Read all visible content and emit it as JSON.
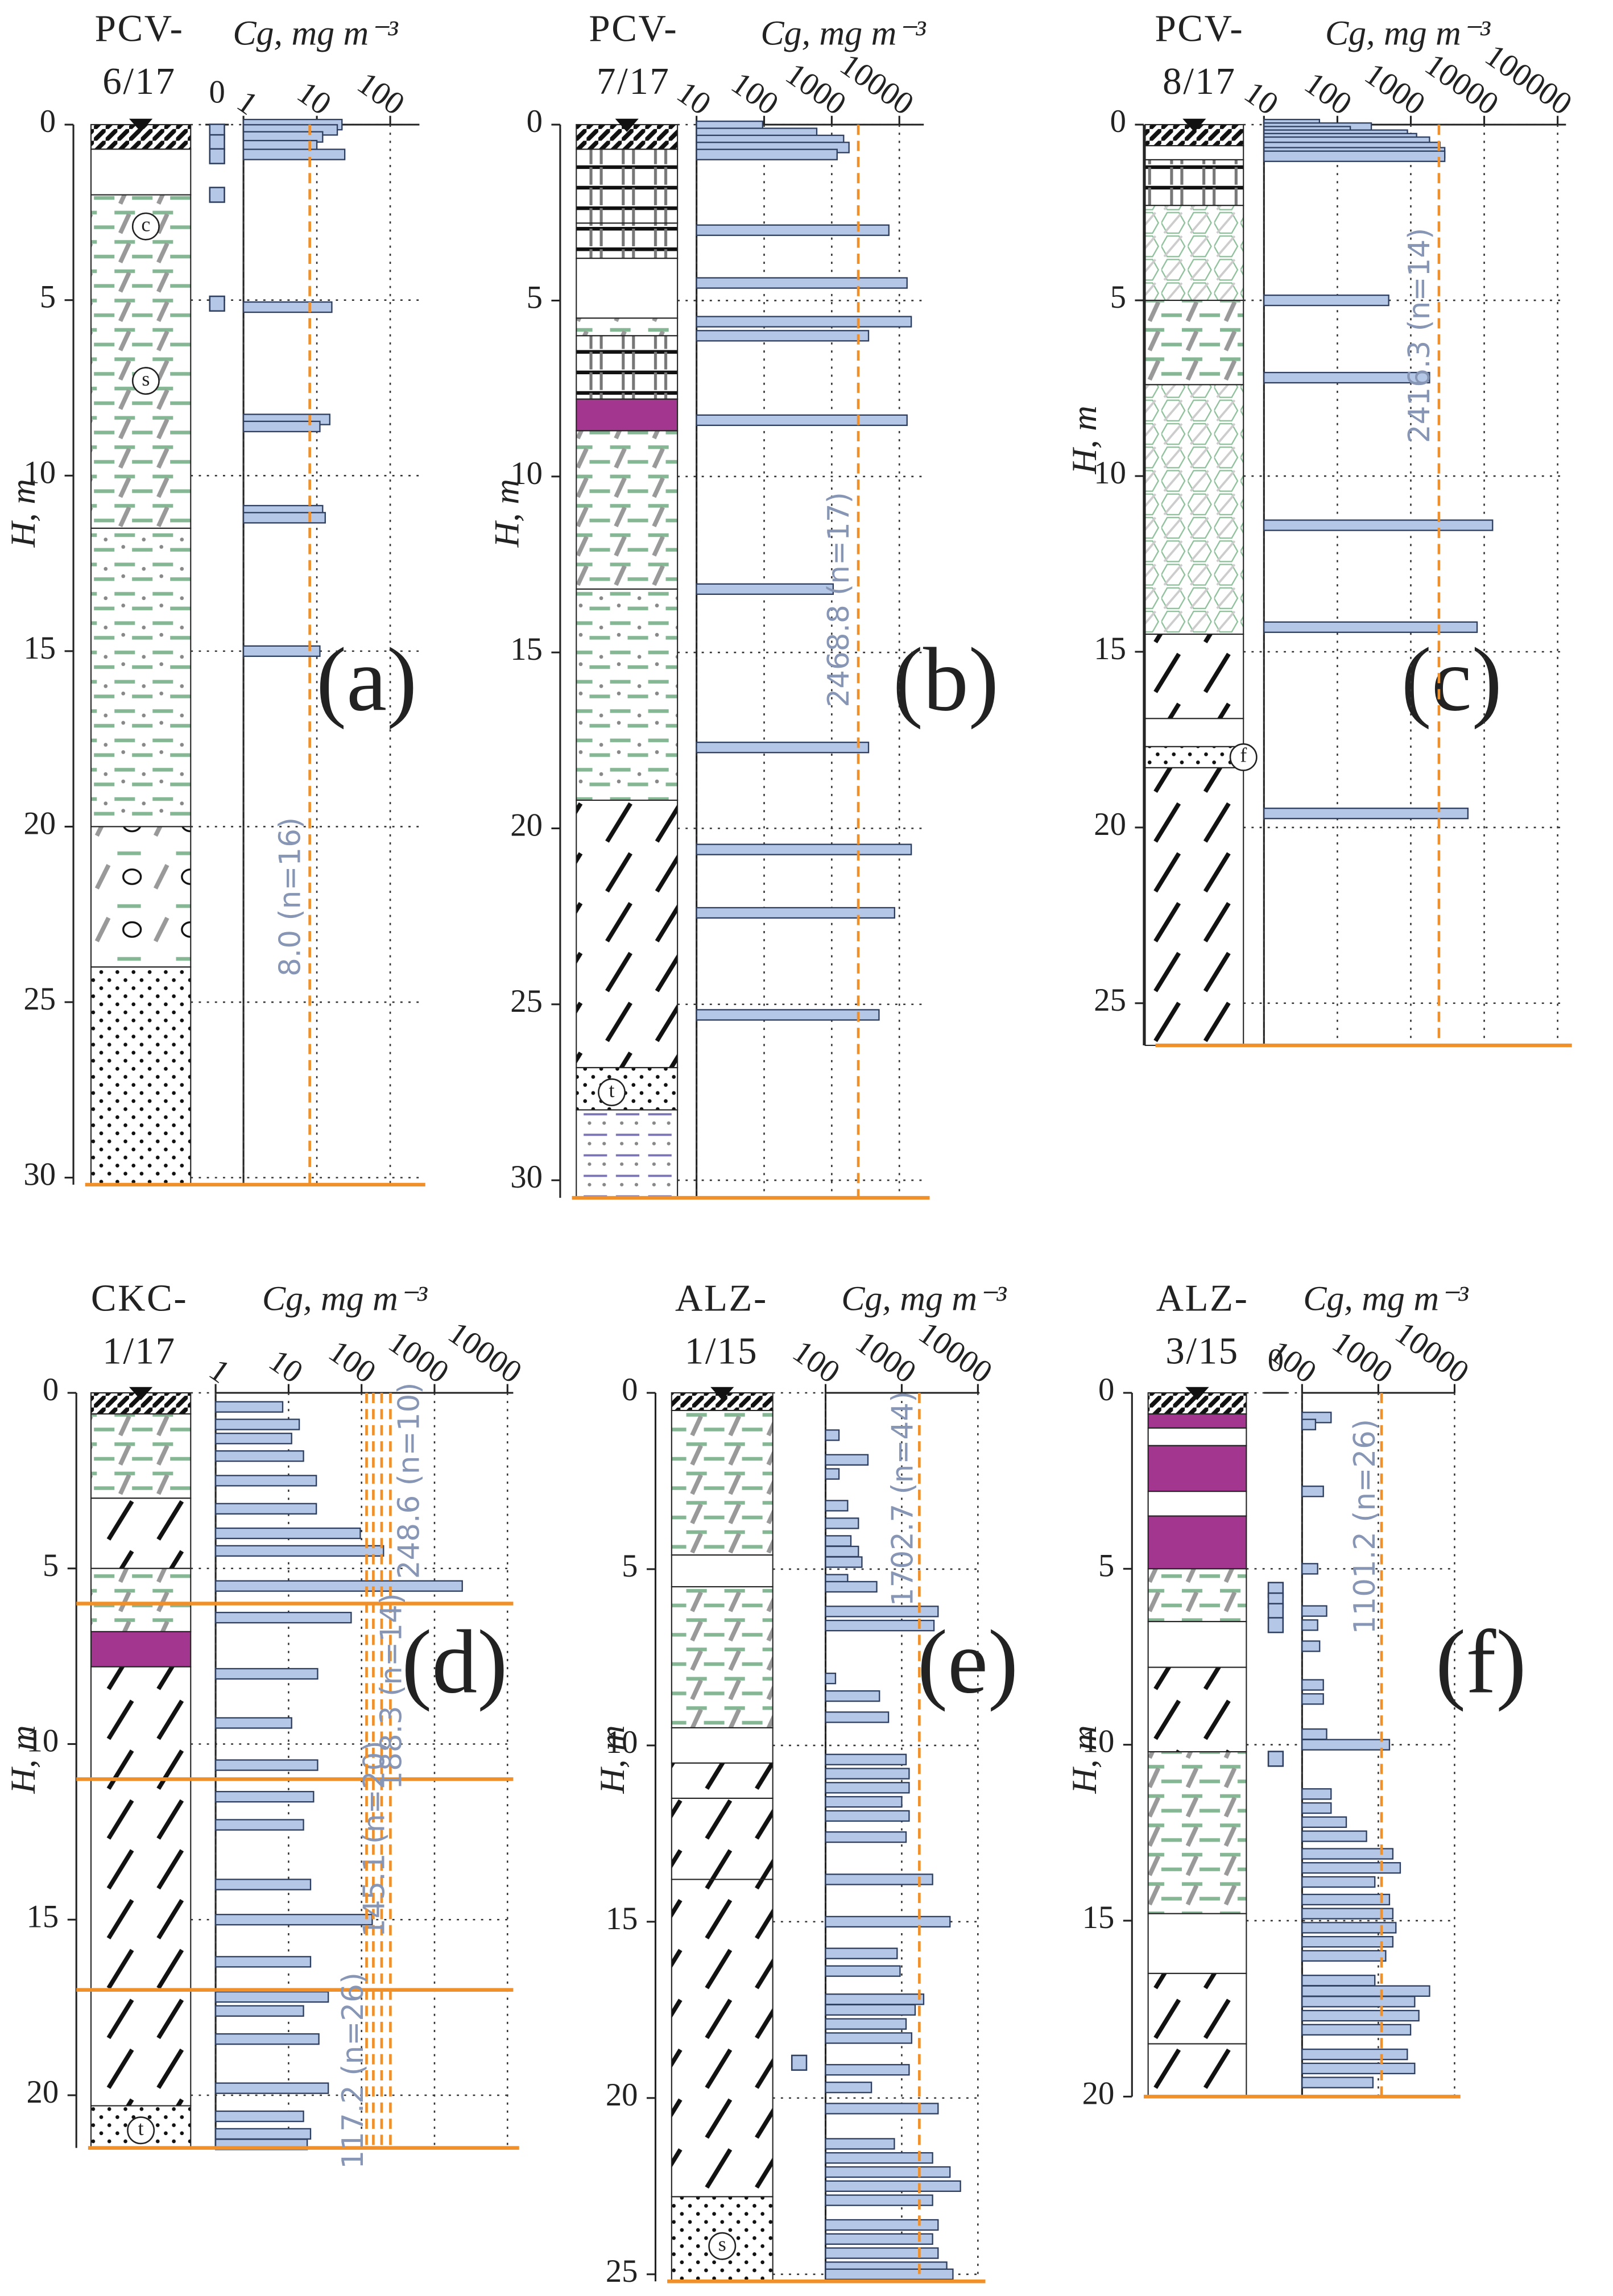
{
  "chart_data": [
    {
      "type": "bar",
      "orientation": "horizontal",
      "log_x": true,
      "title": [
        "PCV-",
        "6/17"
      ],
      "x_label": "Cg, mg m⁻³",
      "y_label": "H, m",
      "panel": "(a)",
      "xlim": [
        1,
        250
      ],
      "xticks": [
        1,
        10,
        100
      ],
      "ylim": [
        0,
        30.2
      ],
      "yticks": [
        0,
        5,
        10,
        15,
        20,
        25,
        30
      ],
      "grid": true,
      "color": "#b4c7e7",
      "depths": [
        0.0,
        0.15,
        0.35,
        0.6,
        0.85,
        5.2,
        8.4,
        8.6,
        11.0,
        11.2,
        15.0
      ],
      "values": [
        22,
        19,
        12,
        10,
        24,
        16,
        15,
        11,
        12,
        13,
        11
      ],
      "zero_tick": 0,
      "zeros": [
        0.2,
        0.5,
        0.9,
        2.0,
        5.1
      ],
      "means": [
        {
          "value": 8.0,
          "label": "8.0 (n=16)"
        }
      ],
      "mean_color": "#f0902a",
      "litho_labels": [
        "c",
        "s"
      ]
    },
    {
      "type": "bar",
      "orientation": "horizontal",
      "log_x": true,
      "title": [
        "PCV-",
        "7/17"
      ],
      "x_label": "Cg, mg m⁻³",
      "y_label": "H, m",
      "panel": "(b)",
      "xlim": [
        10,
        23000
      ],
      "xticks": [
        10,
        100,
        1000,
        10000
      ],
      "ylim": [
        0,
        30.5
      ],
      "yticks": [
        0,
        5,
        10,
        15,
        20,
        25,
        30
      ],
      "grid": true,
      "color": "#b4c7e7",
      "depths": [
        0.05,
        0.25,
        0.45,
        0.65,
        0.85,
        3.0,
        4.5,
        5.6,
        6.0,
        8.4,
        13.2,
        17.7,
        20.6,
        22.4,
        25.3
      ],
      "values": [
        95,
        600,
        1500,
        1800,
        1200,
        7000,
        13000,
        15000,
        3500,
        13000,
        1050,
        3500,
        15000,
        8500,
        5000
      ],
      "means": [
        {
          "value": 2468.8,
          "label": "2468.8 (n=17)"
        }
      ],
      "mean_color": "#f0902a",
      "litho_labels": [
        "t"
      ]
    },
    {
      "type": "bar",
      "orientation": "horizontal",
      "log_x": true,
      "title": [
        "PCV-",
        "8/17"
      ],
      "x_label": "Cg, mg m⁻³",
      "y_label": "H, m",
      "panel": "(c)",
      "xlim": [
        10,
        130000
      ],
      "xticks": [
        10,
        100,
        1000,
        10000,
        100000
      ],
      "ylim": [
        0,
        26.2
      ],
      "yticks": [
        0,
        5,
        10,
        15,
        20,
        25
      ],
      "grid": true,
      "color": "#b4c7e7",
      "depths": [
        0.0,
        0.1,
        0.2,
        0.3,
        0.4,
        0.5,
        0.65,
        0.8,
        0.9,
        5.0,
        7.2,
        11.4,
        14.3,
        19.6
      ],
      "values": [
        57,
        290,
        150,
        900,
        1200,
        1800,
        2500,
        2900,
        2900,
        500,
        1800,
        13000,
        8000,
        6000
      ],
      "means": [
        {
          "value": 2416.3,
          "label": "2416.3 (n=14)"
        }
      ],
      "mean_color": "#f0902a",
      "litho_labels": [
        "f"
      ]
    },
    {
      "type": "bar",
      "orientation": "horizontal",
      "log_x": true,
      "title": [
        "CKC-",
        "1/17"
      ],
      "x_label": "Cg, mg m⁻³",
      "y_label": "H, m",
      "panel": "(d)",
      "xlim": [
        1,
        12000
      ],
      "xticks": [
        1,
        10,
        100,
        1000,
        10000
      ],
      "ylim": [
        0,
        21.5
      ],
      "yticks": [
        0,
        5,
        10,
        15,
        20
      ],
      "grid": true,
      "color": "#b4c7e7",
      "depths": [
        0.4,
        0.9,
        1.3,
        1.8,
        2.5,
        3.3,
        4.0,
        4.5,
        5.5,
        6.4,
        8.0,
        9.4,
        10.6,
        11.5,
        12.3,
        14.0,
        15.0,
        16.2,
        17.2,
        17.6,
        18.4,
        19.8,
        20.6,
        21.1,
        21.4
      ],
      "values": [
        8.3,
        14,
        11,
        16,
        24,
        24,
        96,
        200,
        2400,
        72,
        25,
        11,
        25,
        22,
        16,
        20,
        140,
        20,
        35,
        16,
        26,
        35,
        16,
        20,
        18
      ],
      "boundaries": [
        6,
        11,
        17
      ],
      "means": [
        {
          "value": 248.6,
          "label": "248.6 (n=10)"
        },
        {
          "value": 188.3,
          "label": "188.3 (n=14)"
        },
        {
          "value": 145.1,
          "label": "145.1 (n=20)"
        },
        {
          "value": 117.2,
          "label": "117.2 (n=26)"
        }
      ],
      "mean_color": "#f0902a",
      "litho_labels": [
        "t"
      ]
    },
    {
      "type": "bar",
      "orientation": "horizontal",
      "log_x": true,
      "title": [
        "ALZ-",
        "1/15"
      ],
      "x_label": "Cg, mg m⁻³",
      "y_label": "H, m",
      "panel": "(e)",
      "xlim": [
        100,
        10500
      ],
      "xticks": [
        100,
        1000,
        10000
      ],
      "ylim": [
        0,
        25.2
      ],
      "yticks": [
        0,
        5,
        10,
        15,
        20,
        25
      ],
      "grid": true,
      "color": "#b4c7e7",
      "depths": [
        1.2,
        1.9,
        2.3,
        3.2,
        3.7,
        4.2,
        4.5,
        4.8,
        5.3,
        5.5,
        6.2,
        6.6,
        8.1,
        8.6,
        9.2,
        10.4,
        10.8,
        11.2,
        11.6,
        12.0,
        12.6,
        13.8,
        15.0,
        15.9,
        16.4,
        17.2,
        17.5,
        17.9,
        18.3,
        19.2,
        19.7,
        20.3,
        21.3,
        21.7,
        22.1,
        22.5,
        22.9,
        23.6,
        24.0,
        24.4,
        24.8,
        25.0
      ],
      "values": [
        150,
        360,
        150,
        195,
        270,
        215,
        270,
        300,
        195,
        470,
        3000,
        2650,
        135,
        510,
        670,
        1140,
        1250,
        1250,
        1000,
        1250,
        1140,
        2540,
        4300,
        870,
        950,
        1940,
        1500,
        1140,
        1350,
        1250,
        400,
        3000,
        800,
        2540,
        4300,
        5900,
        2540,
        3000,
        2540,
        3000,
        3900,
        4700
      ],
      "zeros": [
        19.0
      ],
      "means": [
        {
          "value": 1702.7,
          "label": "1702.7 (n=44)"
        }
      ],
      "mean_color": "#f0902a",
      "litho_labels": [
        "s"
      ]
    },
    {
      "type": "bar",
      "orientation": "horizontal",
      "log_x": true,
      "title": [
        "ALZ-",
        "3/15"
      ],
      "x_label": "Cg, mg m⁻³",
      "y_label": "H, m",
      "panel": "(f)",
      "xlim": [
        100,
        10000
      ],
      "xticks": [
        100,
        1000,
        10000
      ],
      "ylim": [
        0,
        20
      ],
      "yticks": [
        0,
        5,
        10,
        15,
        20
      ],
      "grid": true,
      "color": "#b4c7e7",
      "depths": [
        0.7,
        0.9,
        2.8,
        5.0,
        6.2,
        6.6,
        7.2,
        8.3,
        8.7,
        9.7,
        10.0,
        11.4,
        11.8,
        12.2,
        12.6,
        13.1,
        13.5,
        13.9,
        14.4,
        14.8,
        15.2,
        15.6,
        16.0,
        16.7,
        17.0,
        17.3,
        17.7,
        18.1,
        18.8,
        19.2,
        19.6
      ],
      "values": [
        240,
        150,
        190,
        160,
        210,
        160,
        170,
        190,
        190,
        210,
        1400,
        240,
        240,
        380,
        700,
        1550,
        1940,
        900,
        1400,
        1550,
        1700,
        1550,
        1250,
        900,
        4700,
        3000,
        3400,
        2650,
        2400,
        3000,
        850
      ],
      "zero_tick": 0,
      "zeros": [
        5.6,
        5.9,
        6.2,
        6.6,
        10.4
      ],
      "means": [
        {
          "value": 1101.2,
          "label": "1101.2 (n=26)"
        }
      ],
      "mean_color": "#f0902a",
      "litho_labels": []
    }
  ]
}
